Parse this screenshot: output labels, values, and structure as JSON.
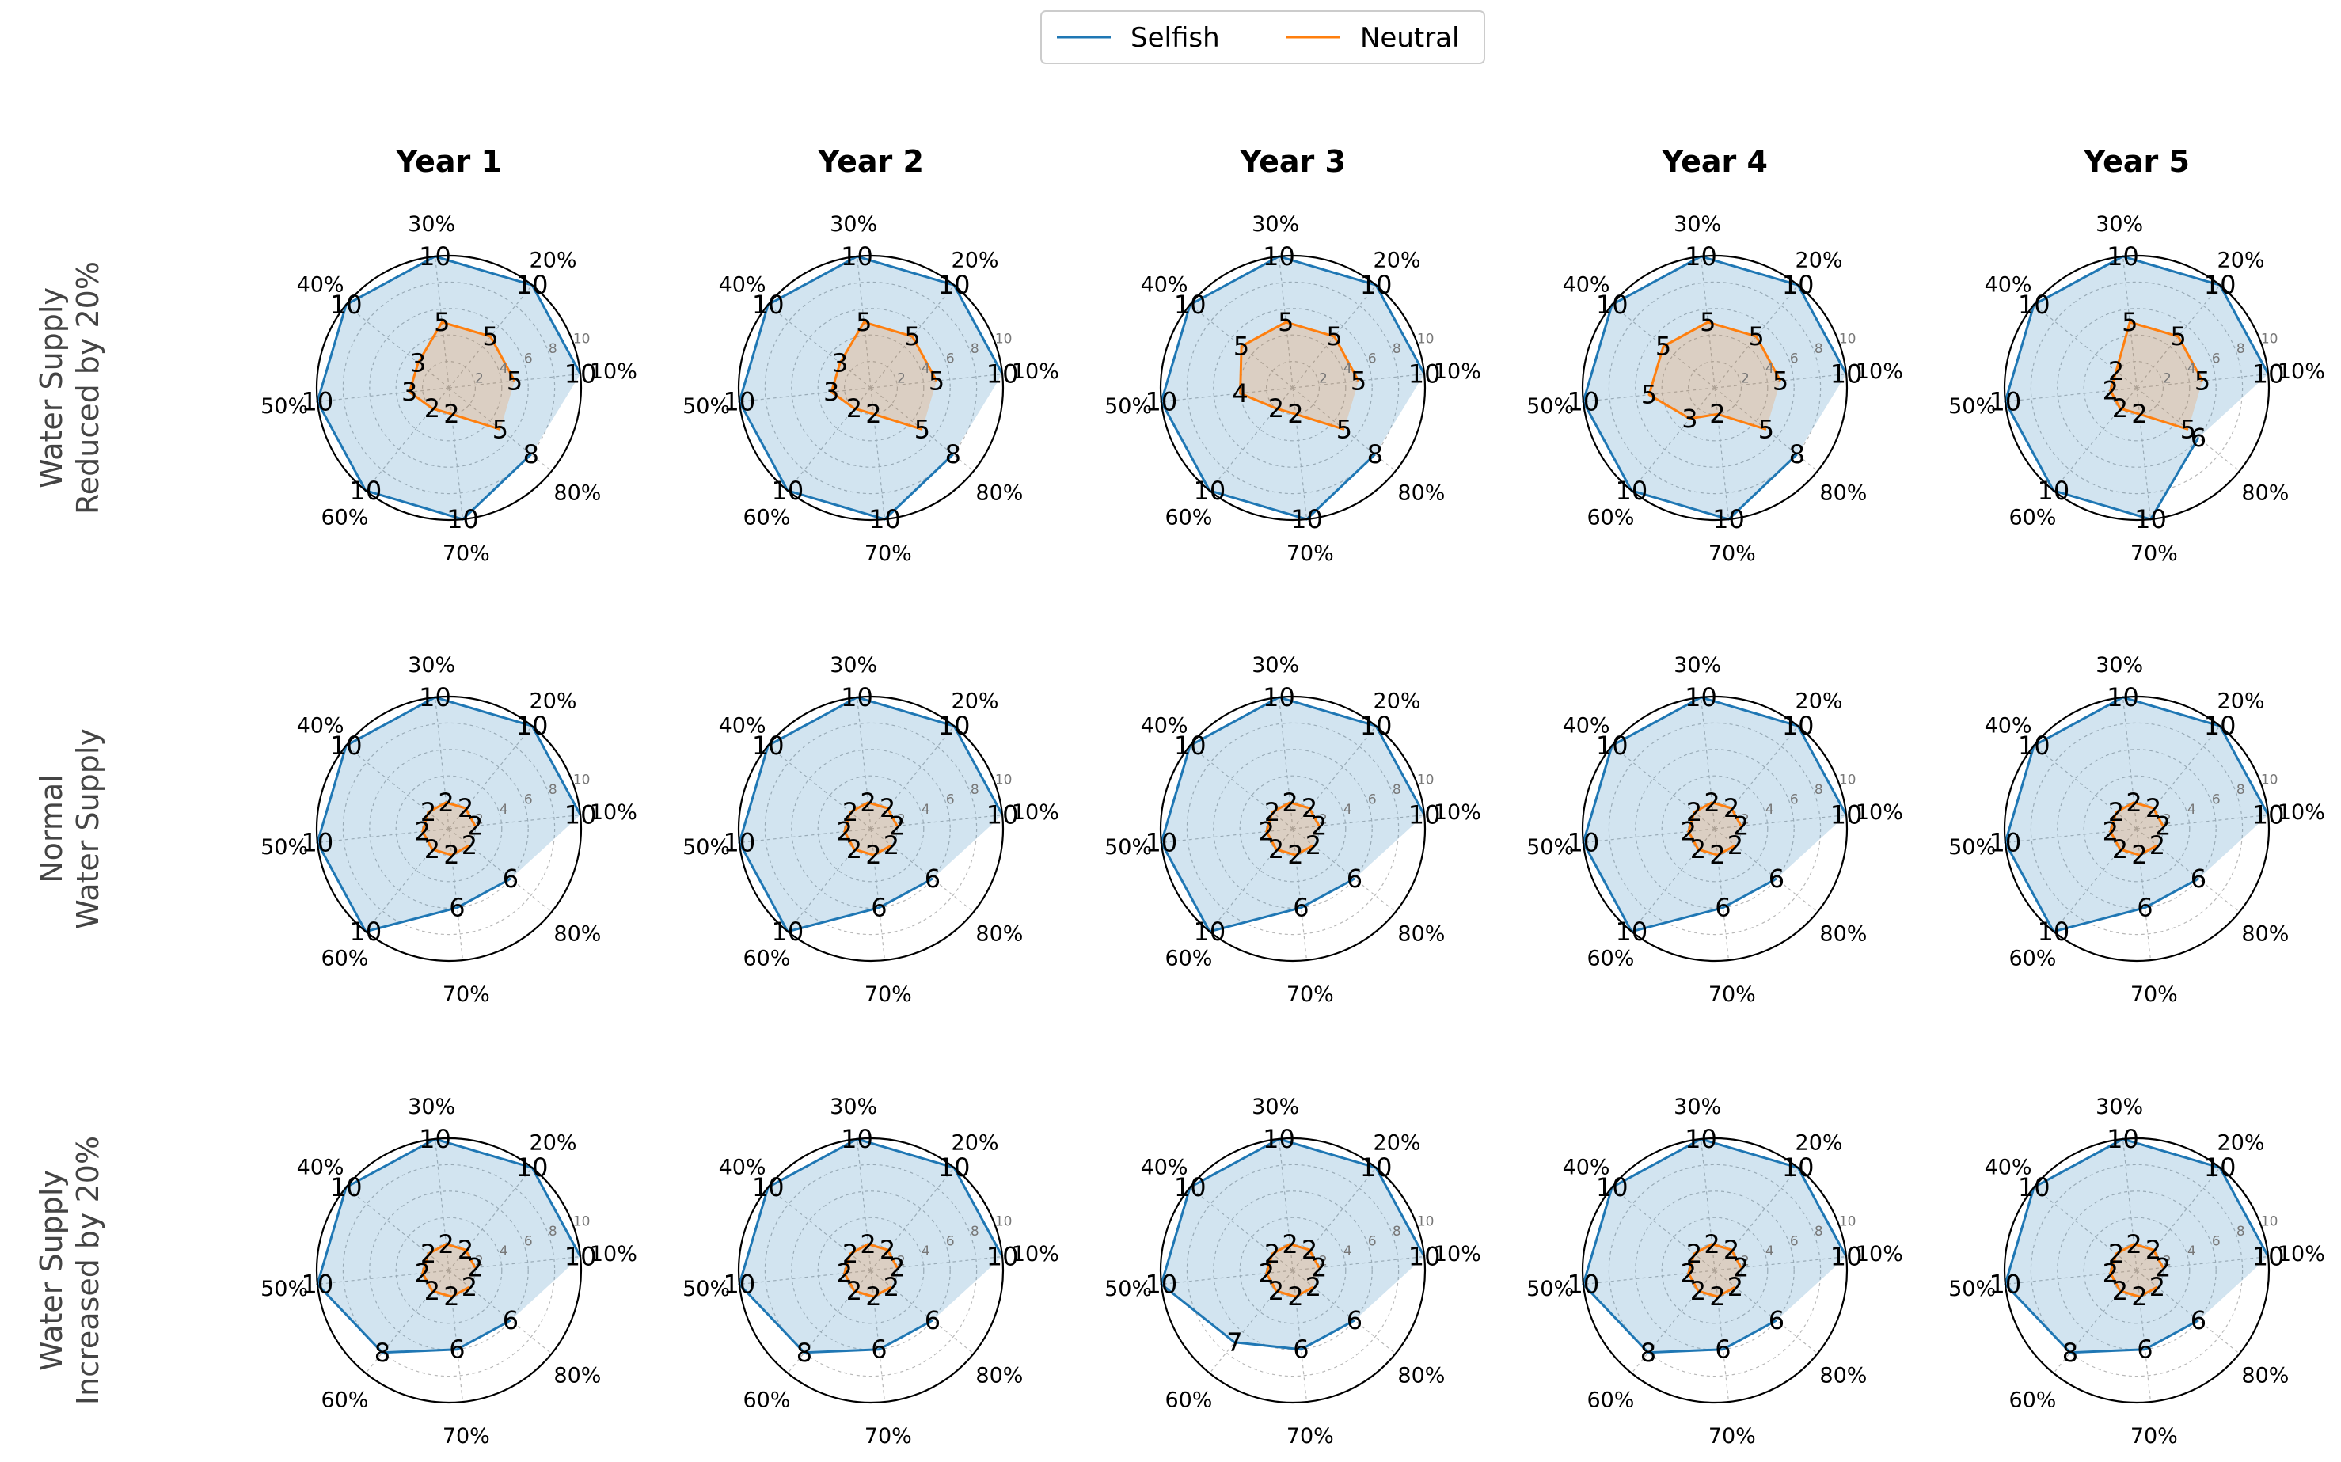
{
  "legend": {
    "placement": "top-center",
    "entries": [
      {
        "name": "Selfish",
        "color": "#1f77b4"
      },
      {
        "name": "Neutral",
        "color": "#ff7f0e"
      }
    ]
  },
  "colors": {
    "selfish": "#1f77b4",
    "neutral": "#ff7f0e",
    "selfish_fill": "#1f77b4",
    "neutral_fill": "#ff7f0e"
  },
  "chart_data": {
    "type": "radar",
    "rlim": [
      0,
      10
    ],
    "radial_ticks": [
      "2",
      "4",
      "6",
      "8",
      "10"
    ],
    "grid": true,
    "categories": [
      "10%",
      "20%",
      "30%",
      "40%",
      "50%",
      "60%",
      "70%",
      "80%"
    ],
    "column_titles": [
      "Year 1",
      "Year 2",
      "Year 3",
      "Year 4",
      "Year 5"
    ],
    "rows": [
      {
        "label_lines": [
          "Water Supply",
          "Reduced by 20%"
        ],
        "panels": [
          {
            "selfish": [
              10,
              10,
              10,
              10,
              10,
              10,
              10,
              8
            ],
            "neutral": [
              5,
              5,
              5,
              3,
              3,
              2,
              2,
              5
            ]
          },
          {
            "selfish": [
              10,
              10,
              10,
              10,
              10,
              10,
              10,
              8
            ],
            "neutral": [
              5,
              5,
              5,
              3,
              3,
              2,
              2,
              5
            ]
          },
          {
            "selfish": [
              10,
              10,
              10,
              10,
              10,
              10,
              10,
              8
            ],
            "neutral": [
              5,
              5,
              5,
              5,
              4,
              2,
              2,
              5
            ]
          },
          {
            "selfish": [
              10,
              10,
              10,
              10,
              10,
              10,
              10,
              8
            ],
            "neutral": [
              5,
              5,
              5,
              5,
              5,
              3,
              2,
              5
            ]
          },
          {
            "selfish": [
              10,
              10,
              10,
              10,
              10,
              10,
              10,
              6
            ],
            "neutral": [
              5,
              5,
              5,
              2,
              2,
              2,
              2,
              5
            ]
          }
        ]
      },
      {
        "label_lines": [
          "Normal",
          "Water Supply"
        ],
        "panels": [
          {
            "selfish": [
              10,
              10,
              10,
              10,
              10,
              10,
              6,
              6
            ],
            "neutral": [
              2,
              2,
              2,
              2,
              2,
              2,
              2,
              2
            ]
          },
          {
            "selfish": [
              10,
              10,
              10,
              10,
              10,
              10,
              6,
              6
            ],
            "neutral": [
              2,
              2,
              2,
              2,
              2,
              2,
              2,
              2
            ]
          },
          {
            "selfish": [
              10,
              10,
              10,
              10,
              10,
              10,
              6,
              6
            ],
            "neutral": [
              2,
              2,
              2,
              2,
              2,
              2,
              2,
              2
            ]
          },
          {
            "selfish": [
              10,
              10,
              10,
              10,
              10,
              10,
              6,
              6
            ],
            "neutral": [
              2,
              2,
              2,
              2,
              2,
              2,
              2,
              2
            ]
          },
          {
            "selfish": [
              10,
              10,
              10,
              10,
              10,
              10,
              6,
              6
            ],
            "neutral": [
              2,
              2,
              2,
              2,
              2,
              2,
              2,
              2
            ]
          }
        ]
      },
      {
        "label_lines": [
          "Water Supply",
          "Increased by 20%"
        ],
        "panels": [
          {
            "selfish": [
              10,
              10,
              10,
              10,
              10,
              8,
              6,
              6
            ],
            "neutral": [
              2,
              2,
              2,
              2,
              2,
              2,
              2,
              2
            ]
          },
          {
            "selfish": [
              10,
              10,
              10,
              10,
              10,
              8,
              6,
              6
            ],
            "neutral": [
              2,
              2,
              2,
              2,
              2,
              2,
              2,
              2
            ]
          },
          {
            "selfish": [
              10,
              10,
              10,
              10,
              10,
              7,
              6,
              6
            ],
            "neutral": [
              2,
              2,
              2,
              2,
              2,
              2,
              2,
              2
            ]
          },
          {
            "selfish": [
              10,
              10,
              10,
              10,
              10,
              8,
              6,
              6
            ],
            "neutral": [
              2,
              2,
              2,
              2,
              2,
              2,
              2,
              2
            ]
          },
          {
            "selfish": [
              10,
              10,
              10,
              10,
              10,
              8,
              6,
              6
            ],
            "neutral": [
              2,
              2,
              2,
              2,
              2,
              2,
              2,
              2
            ]
          }
        ]
      }
    ]
  }
}
